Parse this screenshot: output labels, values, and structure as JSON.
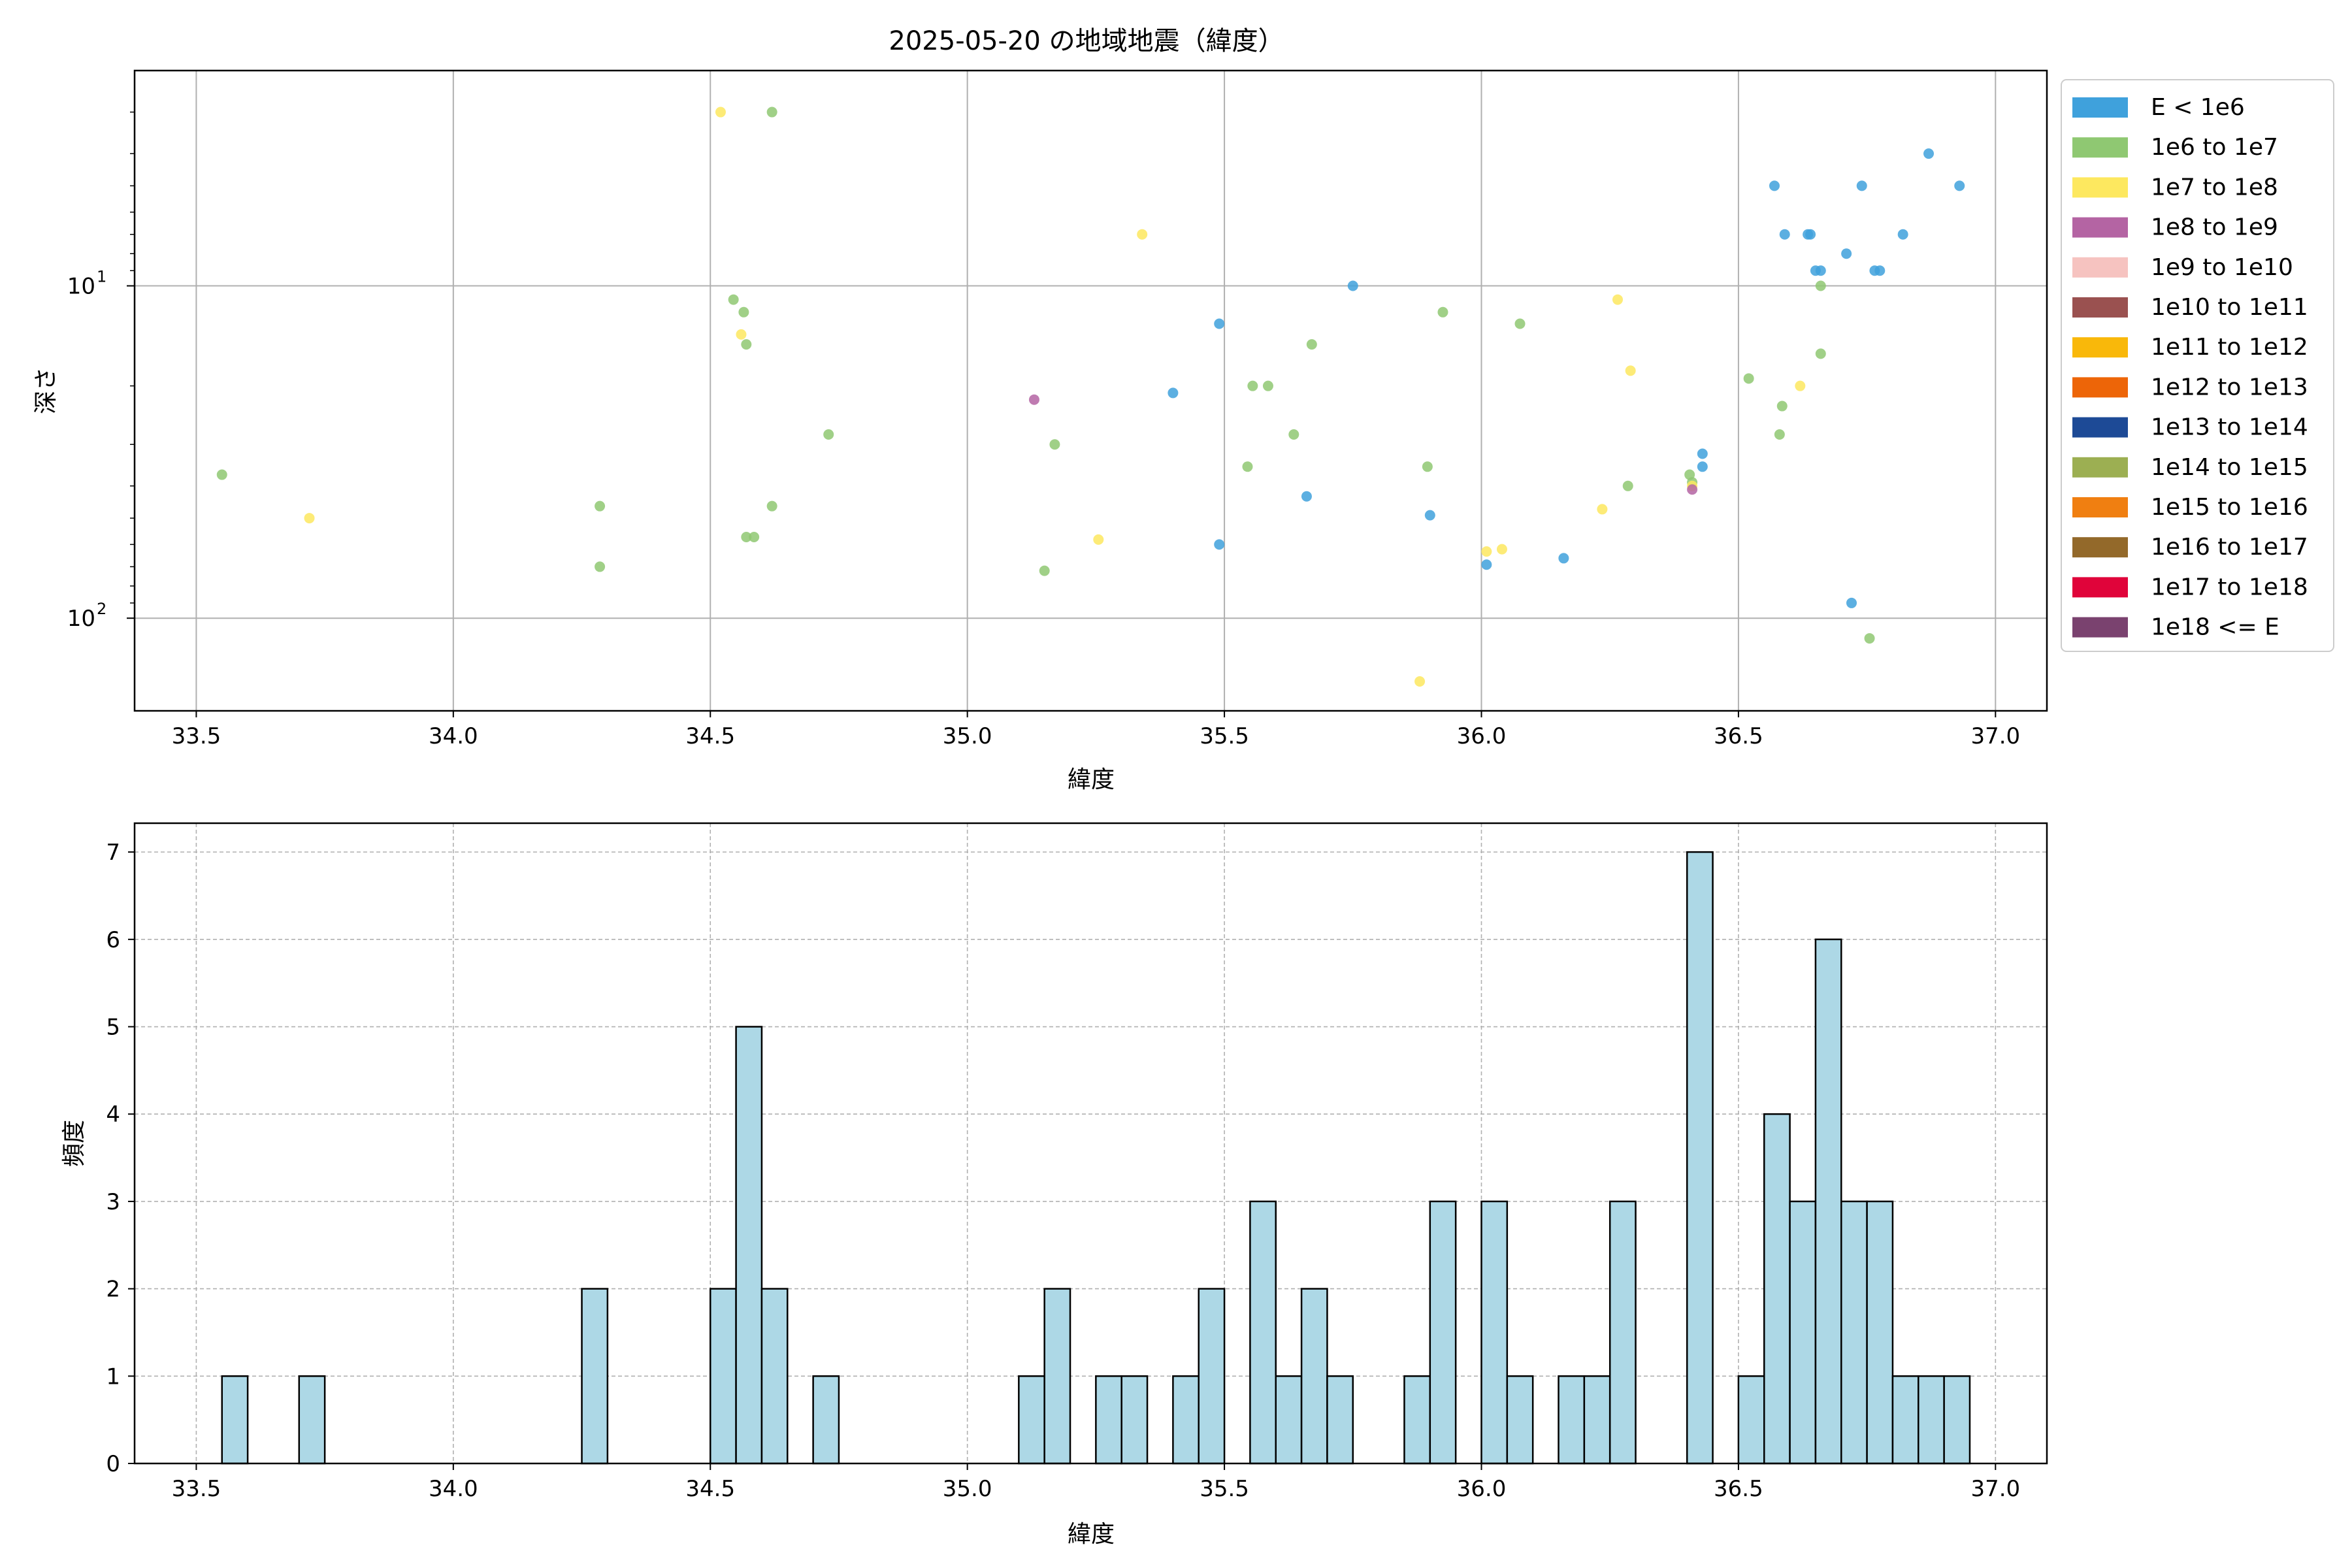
{
  "title": "2025-05-20 の地域地震（緯度）",
  "chart_data": [
    {
      "type": "scatter",
      "xlabel": "緯度",
      "ylabel": "深さ",
      "xlim": [
        33.38,
        37.1
      ],
      "ylim": [
        190,
        2.25
      ],
      "y_scale": "log",
      "y_inverted": true,
      "grid": true,
      "xticks": [
        "33.5",
        "34.0",
        "34.5",
        "35.0",
        "35.5",
        "36.0",
        "36.5",
        "37.0"
      ],
      "yticks": [
        {
          "value": 10,
          "base": "10",
          "exp": "1"
        },
        {
          "value": 100,
          "base": "10",
          "exp": "2"
        }
      ],
      "legend_position": "outside-right",
      "legend": [
        {
          "label": "E < 1e6",
          "color": "#3fa1dc"
        },
        {
          "label": "1e6 to 1e7",
          "color": "#8fc872"
        },
        {
          "label": "1e7 to 1e8",
          "color": "#fde85f"
        },
        {
          "label": "1e8 to 1e9",
          "color": "#b464a3"
        },
        {
          "label": "1e9 to 1e10",
          "color": "#f6c3c0"
        },
        {
          "label": "1e10 to 1e11",
          "color": "#9a5150"
        },
        {
          "label": "1e11 to 1e12",
          "color": "#f9b80a"
        },
        {
          "label": "1e12 to 1e13",
          "color": "#ed6508"
        },
        {
          "label": "1e13 to 1e14",
          "color": "#1d4a96"
        },
        {
          "label": "1e14 to 1e15",
          "color": "#9caf52"
        },
        {
          "label": "1e15 to 1e16",
          "color": "#f07f11"
        },
        {
          "label": "1e16 to 1e17",
          "color": "#93692a"
        },
        {
          "label": "1e17 to 1e18",
          "color": "#e0043a"
        },
        {
          "label": "1e18 <= E",
          "color": "#7a426f"
        }
      ],
      "series": [
        {
          "class": 0,
          "points": [
            [
              36.57,
              5
            ],
            [
              36.59,
              7
            ],
            [
              36.64,
              7
            ],
            [
              36.635,
              7
            ],
            [
              36.65,
              9
            ],
            [
              36.66,
              9
            ],
            [
              36.71,
              8
            ],
            [
              36.74,
              5
            ],
            [
              36.765,
              9
            ],
            [
              36.775,
              9
            ],
            [
              36.82,
              7
            ],
            [
              36.87,
              4
            ],
            [
              36.93,
              5
            ],
            [
              35.75,
              10
            ],
            [
              35.49,
              13
            ],
            [
              35.4,
              21
            ],
            [
              35.66,
              43
            ],
            [
              35.49,
              60
            ],
            [
              35.9,
              49
            ],
            [
              36.01,
              69
            ],
            [
              36.16,
              66
            ],
            [
              36.43,
              32
            ],
            [
              36.43,
              35
            ],
            [
              36.72,
              90
            ]
          ]
        },
        {
          "class": 1,
          "points": [
            [
              34.62,
              3
            ],
            [
              34.545,
              11
            ],
            [
              34.565,
              12
            ],
            [
              34.57,
              15
            ],
            [
              34.73,
              28
            ],
            [
              34.285,
              46
            ],
            [
              34.285,
              70
            ],
            [
              34.62,
              46
            ],
            [
              34.57,
              57
            ],
            [
              34.585,
              57
            ],
            [
              35.15,
              72
            ],
            [
              35.17,
              30
            ],
            [
              35.555,
              20
            ],
            [
              35.585,
              20
            ],
            [
              35.67,
              15
            ],
            [
              35.545,
              35
            ],
            [
              35.635,
              28
            ],
            [
              35.895,
              35
            ],
            [
              35.925,
              12
            ],
            [
              36.075,
              13
            ],
            [
              36.285,
              40
            ],
            [
              36.405,
              37
            ],
            [
              36.41,
              39
            ],
            [
              36.52,
              19
            ],
            [
              36.585,
              23
            ],
            [
              36.58,
              28
            ],
            [
              36.66,
              16
            ],
            [
              36.66,
              10
            ],
            [
              36.755,
              115
            ],
            [
              33.55,
              37
            ]
          ]
        },
        {
          "class": 2,
          "points": [
            [
              34.52,
              3
            ],
            [
              35.34,
              7
            ],
            [
              34.56,
              14
            ],
            [
              36.265,
              11
            ],
            [
              36.29,
              18
            ],
            [
              36.62,
              20
            ],
            [
              36.41,
              40
            ],
            [
              36.235,
              47
            ],
            [
              35.255,
              58
            ],
            [
              36.01,
              63
            ],
            [
              36.04,
              62
            ],
            [
              35.88,
              155
            ],
            [
              33.72,
              50
            ]
          ]
        },
        {
          "class": 3,
          "points": [
            [
              35.13,
              22
            ],
            [
              36.41,
              41
            ]
          ]
        }
      ]
    },
    {
      "type": "bar",
      "title": "",
      "xlabel": "緯度",
      "ylabel": "頻度",
      "xlim": [
        33.38,
        37.1
      ],
      "ylim": [
        0,
        7.33
      ],
      "grid": true,
      "xticks": [
        "33.5",
        "34.0",
        "34.5",
        "35.0",
        "35.5",
        "36.0",
        "36.5",
        "37.0"
      ],
      "yticks": [
        "0",
        "1",
        "2",
        "3",
        "4",
        "5",
        "6",
        "7"
      ],
      "bar_color": "#add8e6",
      "bin_width": 0.05,
      "bins": [
        {
          "x0": 33.55,
          "count": 1
        },
        {
          "x0": 33.7,
          "count": 1
        },
        {
          "x0": 34.25,
          "count": 2
        },
        {
          "x0": 34.5,
          "count": 2
        },
        {
          "x0": 34.55,
          "count": 5
        },
        {
          "x0": 34.6,
          "count": 2
        },
        {
          "x0": 34.7,
          "count": 1
        },
        {
          "x0": 35.1,
          "count": 1
        },
        {
          "x0": 35.15,
          "count": 2
        },
        {
          "x0": 35.25,
          "count": 1
        },
        {
          "x0": 35.3,
          "count": 1
        },
        {
          "x0": 35.4,
          "count": 1
        },
        {
          "x0": 35.45,
          "count": 2
        },
        {
          "x0": 35.55,
          "count": 3
        },
        {
          "x0": 35.6,
          "count": 1
        },
        {
          "x0": 35.65,
          "count": 2
        },
        {
          "x0": 35.7,
          "count": 1
        },
        {
          "x0": 35.85,
          "count": 1
        },
        {
          "x0": 35.9,
          "count": 3
        },
        {
          "x0": 36.0,
          "count": 3
        },
        {
          "x0": 36.05,
          "count": 1
        },
        {
          "x0": 36.15,
          "count": 1
        },
        {
          "x0": 36.2,
          "count": 1
        },
        {
          "x0": 36.25,
          "count": 3
        },
        {
          "x0": 36.4,
          "count": 7
        },
        {
          "x0": 36.5,
          "count": 1
        },
        {
          "x0": 36.55,
          "count": 4
        },
        {
          "x0": 36.6,
          "count": 3
        },
        {
          "x0": 36.65,
          "count": 6
        },
        {
          "x0": 36.7,
          "count": 3
        },
        {
          "x0": 36.75,
          "count": 3
        },
        {
          "x0": 36.8,
          "count": 1
        },
        {
          "x0": 36.85,
          "count": 1
        },
        {
          "x0": 36.9,
          "count": 1
        }
      ]
    }
  ]
}
